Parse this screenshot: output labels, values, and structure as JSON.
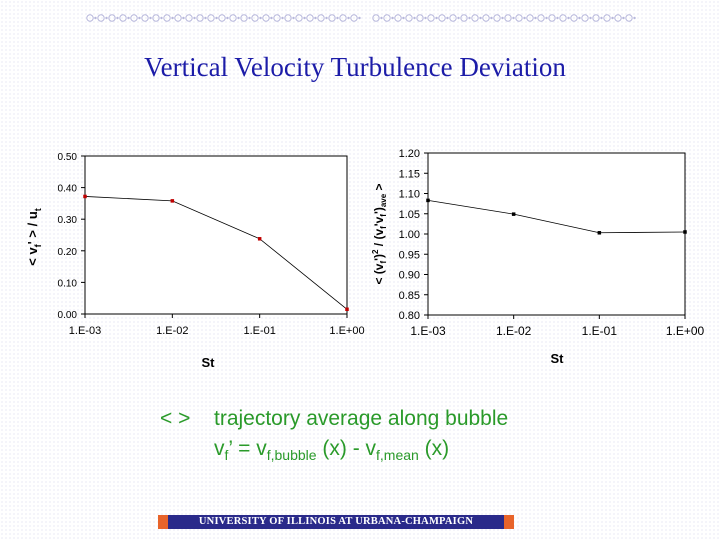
{
  "slide": {
    "title": "Vertical Velocity Turbulence Deviation",
    "note": {
      "symbol": "< >",
      "line1": "trajectory average along bubble",
      "line2": {
        "lhs_base": "v",
        "lhs_sub": "f",
        "lhs_prime_eq": "’ = v",
        "rhs1_sub": "f,bubble",
        "rhs1_arg": " (x) -  v",
        "rhs2_sub": "f,mean",
        "rhs2_arg": " (x)"
      }
    },
    "footer": "UNIVERSITY OF ILLINOIS AT URBANA-CHAMPAIGN",
    "colors": {
      "title": "#1c1ca8",
      "note": "#2a9a2a",
      "footer_bar": "#2a2a8a",
      "footer_accent": "#e8642a",
      "left_marker": "#c00000",
      "right_marker": "#000000"
    }
  },
  "chart_data": [
    {
      "type": "line",
      "categories": [
        "1.E-03",
        "1.E-02",
        "1.E-01",
        "1.E+00"
      ],
      "values": [
        0.372,
        0.358,
        0.238,
        0.015
      ],
      "xlabel": "St",
      "ylabel": "< v′f′ > / ut",
      "ylim": [
        0,
        0.5
      ],
      "yticks": [
        "0.00",
        "0.10",
        "0.20",
        "0.30",
        "0.40",
        "0.50"
      ],
      "grid": false,
      "legend": "none"
    },
    {
      "type": "line",
      "categories": [
        "1.E-03",
        "1.E-02",
        "1.E-01",
        "1.E+00"
      ],
      "values": [
        1.083,
        1.049,
        1.003,
        1.005
      ],
      "xlabel": "St",
      "ylabel": "< (vf′)2 / (vf′vf′)ave >",
      "ylim": [
        0.8,
        1.2
      ],
      "yticks": [
        "0.80",
        "0.85",
        "0.90",
        "0.95",
        "1.00",
        "1.05",
        "1.10",
        "1.15",
        "1.20"
      ],
      "grid": false,
      "legend": "none"
    }
  ]
}
